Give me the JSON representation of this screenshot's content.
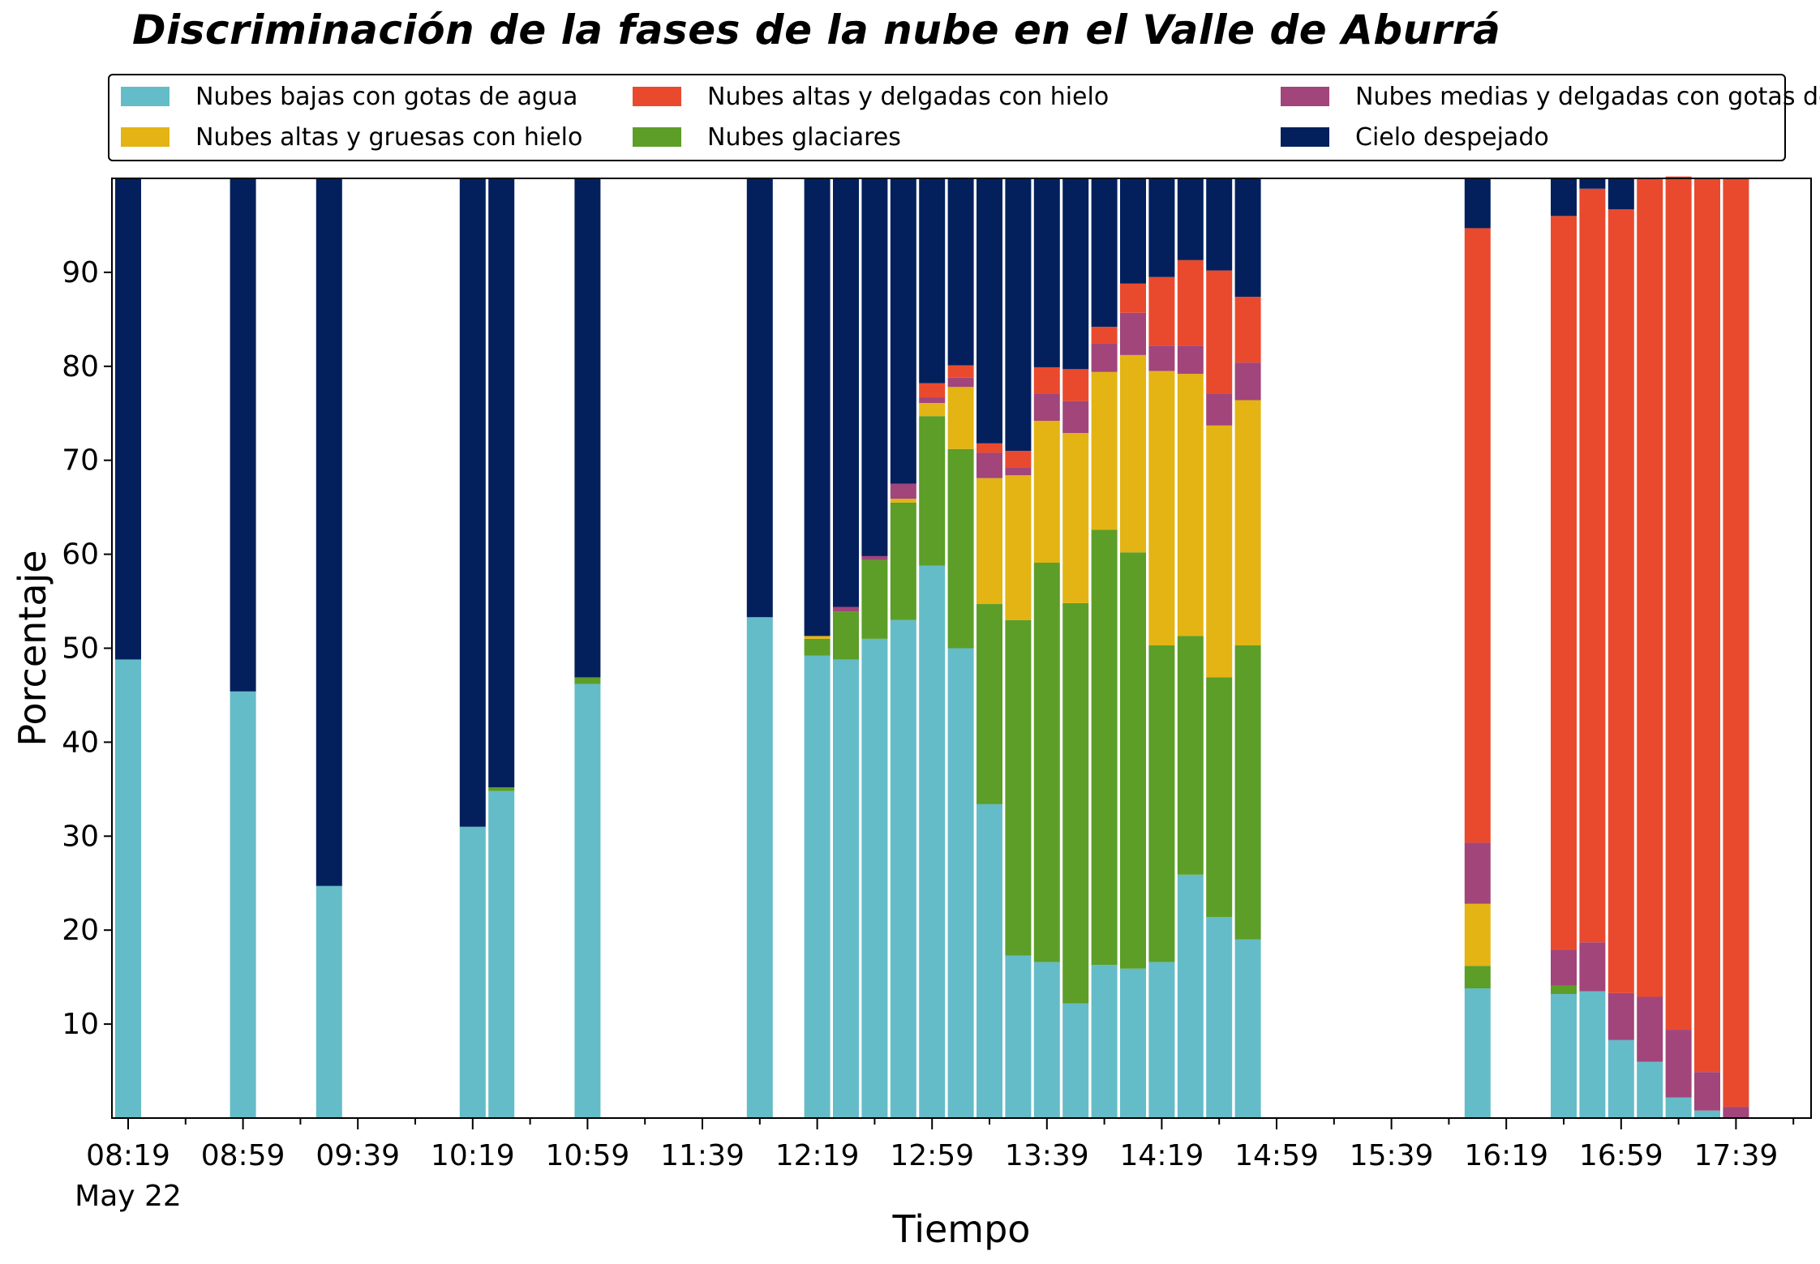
{
  "chart_data": {
    "type": "bar",
    "stacked": true,
    "title": "Discriminación de la fases de la nube en el Valle de Aburrá",
    "xlabel": "Tiempo",
    "ylabel": "Porcentaje",
    "ylim": [
      0,
      100
    ],
    "yticks": [
      10,
      20,
      30,
      40,
      50,
      60,
      70,
      80,
      90
    ],
    "x_ticks": [
      "08:19",
      "08:59",
      "09:39",
      "10:19",
      "10:59",
      "11:39",
      "12:19",
      "12:59",
      "13:39",
      "14:19",
      "14:59",
      "15:39",
      "16:19",
      "16:59",
      "17:39"
    ],
    "x_date_label": "May 22",
    "bar_interval_minutes": 10,
    "legend_position": "top",
    "grid": false,
    "series": [
      {
        "name": "Nubes bajas con gotas de agua",
        "color": "#64BCC8"
      },
      {
        "name": "Nubes glaciares",
        "color": "#5C9E28"
      },
      {
        "name": "Nubes altas y gruesas con hielo",
        "color": "#E3B413"
      },
      {
        "name": "Nubes medias y delgadas con gotas de agua",
        "color": "#A1457B"
      },
      {
        "name": "Nubes altas y delgadas con hielo",
        "color": "#E94A2E"
      },
      {
        "name": "Cielo despejado",
        "color": "#03205D"
      }
    ],
    "bars": [
      {
        "time": "08:19",
        "values": [
          48.8,
          0,
          0,
          0,
          0,
          51.2
        ]
      },
      {
        "time": "08:59",
        "values": [
          45.4,
          0,
          0,
          0,
          0,
          54.6
        ]
      },
      {
        "time": "09:29",
        "values": [
          24.7,
          0,
          0,
          0,
          0,
          75.3
        ]
      },
      {
        "time": "10:19",
        "values": [
          31.0,
          0,
          0,
          0,
          0,
          69.0
        ]
      },
      {
        "time": "10:29",
        "values": [
          34.8,
          0.4,
          0,
          0,
          0,
          64.8
        ]
      },
      {
        "time": "10:59",
        "values": [
          46.2,
          0.7,
          0,
          0,
          0,
          53.1
        ]
      },
      {
        "time": "11:59",
        "values": [
          53.3,
          0,
          0,
          0,
          0,
          46.7
        ]
      },
      {
        "time": "12:19",
        "values": [
          49.2,
          1.8,
          0.3,
          0,
          0,
          48.7
        ]
      },
      {
        "time": "12:29",
        "values": [
          48.8,
          5.1,
          0,
          0.5,
          0,
          45.6
        ]
      },
      {
        "time": "12:39",
        "values": [
          51.0,
          8.4,
          0,
          0.4,
          0,
          40.2
        ]
      },
      {
        "time": "12:49",
        "values": [
          53.0,
          12.5,
          0.4,
          1.6,
          0,
          32.5
        ]
      },
      {
        "time": "12:59",
        "values": [
          58.8,
          15.9,
          1.4,
          0.6,
          1.5,
          21.8
        ]
      },
      {
        "time": "13:09",
        "values": [
          50.0,
          21.2,
          6.6,
          1.0,
          1.3,
          19.9
        ]
      },
      {
        "time": "13:19",
        "values": [
          33.4,
          21.3,
          13.4,
          2.7,
          1.0,
          28.2
        ]
      },
      {
        "time": "13:29",
        "values": [
          17.3,
          35.7,
          15.4,
          0.8,
          1.8,
          29.0
        ]
      },
      {
        "time": "13:39",
        "values": [
          16.6,
          42.5,
          15.1,
          2.9,
          2.8,
          20.1
        ]
      },
      {
        "time": "13:49",
        "values": [
          12.2,
          42.6,
          18.1,
          3.4,
          3.4,
          20.3
        ]
      },
      {
        "time": "13:59",
        "values": [
          16.3,
          46.3,
          16.8,
          3.0,
          1.8,
          15.8
        ]
      },
      {
        "time": "14:09",
        "values": [
          15.9,
          44.3,
          21.0,
          4.5,
          3.1,
          11.2
        ]
      },
      {
        "time": "14:19",
        "values": [
          16.6,
          33.7,
          29.2,
          2.7,
          7.3,
          10.5
        ]
      },
      {
        "time": "14:29",
        "values": [
          25.9,
          25.4,
          27.9,
          3.0,
          9.1,
          8.7
        ]
      },
      {
        "time": "14:39",
        "values": [
          21.4,
          25.5,
          26.8,
          3.4,
          13.1,
          9.8
        ]
      },
      {
        "time": "14:49",
        "values": [
          19.0,
          31.3,
          26.1,
          4.0,
          7.0,
          12.6
        ]
      },
      {
        "time": "16:09",
        "values": [
          13.8,
          2.4,
          6.6,
          6.5,
          65.4,
          5.3
        ]
      },
      {
        "time": "16:39",
        "values": [
          13.2,
          0.9,
          0,
          3.8,
          78.1,
          4.0
        ]
      },
      {
        "time": "16:49",
        "values": [
          13.5,
          0,
          0,
          5.2,
          80.2,
          1.1
        ]
      },
      {
        "time": "16:59",
        "values": [
          8.3,
          0,
          0,
          5.0,
          83.4,
          3.3
        ]
      },
      {
        "time": "17:09",
        "values": [
          6.0,
          0,
          0,
          6.9,
          87.0,
          0.1
        ]
      },
      {
        "time": "17:19",
        "values": [
          2.2,
          0,
          0,
          7.2,
          90.8,
          0
        ]
      },
      {
        "time": "17:29",
        "values": [
          0.8,
          0,
          0,
          4.1,
          95.1,
          0
        ]
      },
      {
        "time": "17:39",
        "values": [
          0,
          0,
          0,
          1.2,
          98.8,
          0
        ]
      }
    ]
  }
}
